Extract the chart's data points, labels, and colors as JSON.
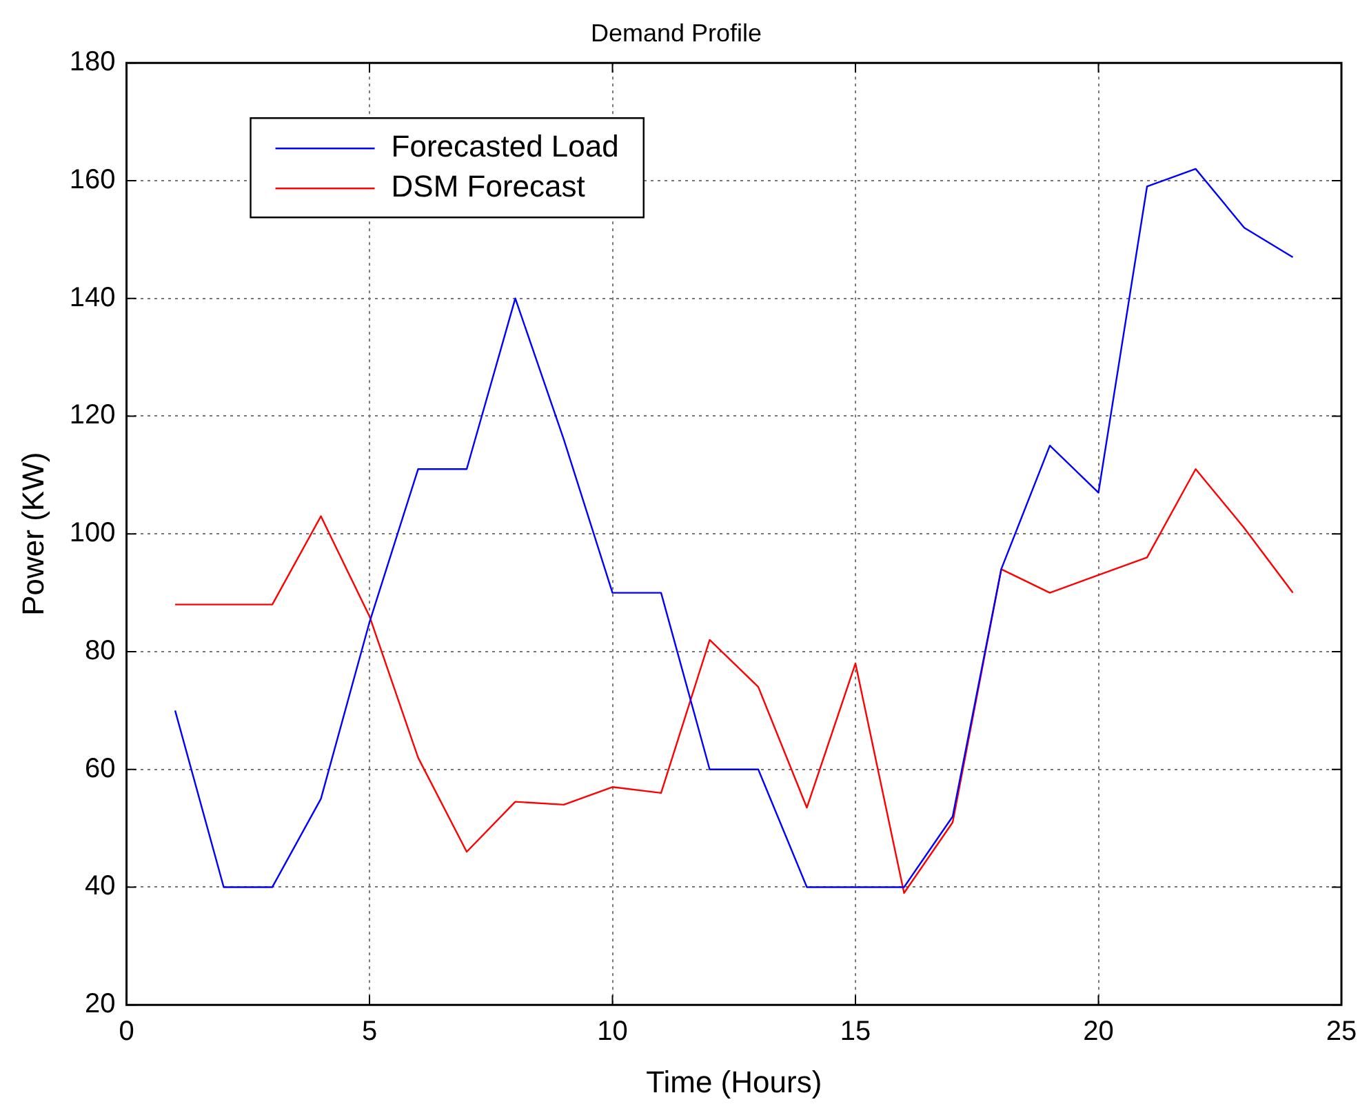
{
  "chart_data": {
    "type": "line",
    "title": "Demand Profile",
    "xlabel": "Time (Hours)",
    "ylabel": "Power (KW)",
    "x": [
      1,
      2,
      3,
      4,
      5,
      6,
      7,
      8,
      9,
      10,
      11,
      12,
      13,
      14,
      15,
      16,
      17,
      18,
      19,
      20,
      21,
      22,
      23,
      24
    ],
    "series": [
      {
        "name": "Forecasted Load",
        "color": "#0000ff",
        "values": [
          70,
          40,
          40,
          55,
          85,
          111,
          111,
          140,
          116,
          90,
          90,
          60,
          60,
          40,
          40,
          40,
          52,
          94,
          115,
          107,
          159,
          162,
          152,
          147
        ]
      },
      {
        "name": "DSM Forecast",
        "color": "#ff0000",
        "values": [
          88,
          88,
          88,
          103,
          86,
          62,
          46,
          54.5,
          54,
          57,
          56,
          82,
          74,
          53.5,
          78,
          39,
          51,
          94,
          90,
          93,
          96,
          111,
          101,
          90
        ]
      }
    ],
    "xlim": [
      0,
      25
    ],
    "xticks": [
      0,
      5,
      10,
      15,
      20,
      25
    ],
    "ylim": [
      20,
      180
    ],
    "yticks": [
      20,
      40,
      60,
      80,
      100,
      120,
      140,
      160,
      180
    ],
    "grid": true,
    "legend": "top left",
    "marker": "none",
    "line_style": "solid"
  }
}
